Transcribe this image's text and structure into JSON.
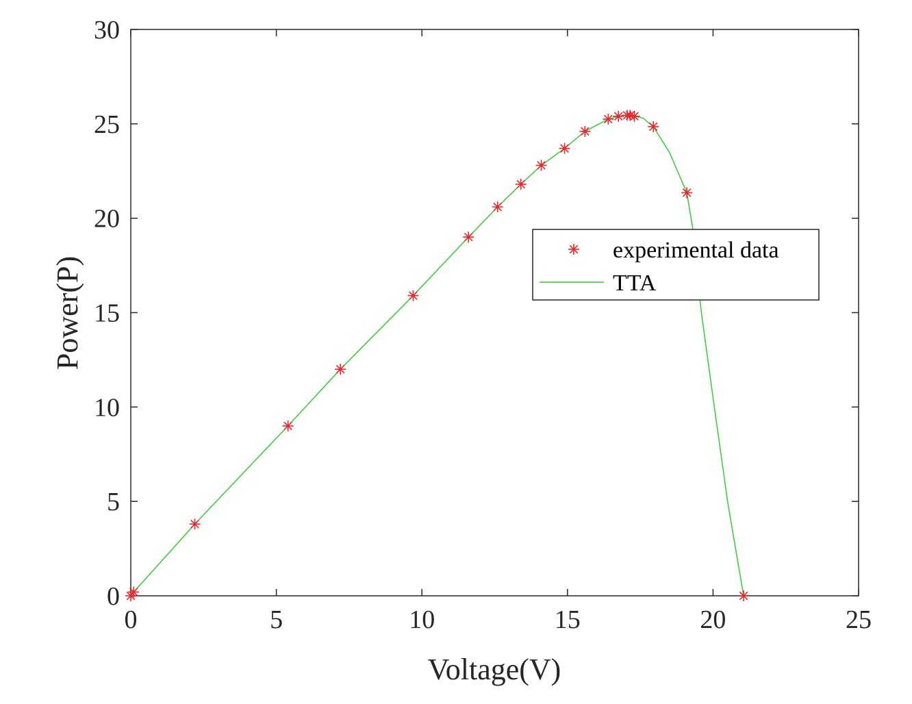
{
  "chart_data": {
    "type": "line",
    "title": "",
    "xlabel": "Voltage(V)",
    "ylabel": "Power(P)",
    "xlim": [
      0,
      25
    ],
    "ylim": [
      0,
      30
    ],
    "xticks": [
      0,
      5,
      10,
      15,
      20,
      25
    ],
    "yticks": [
      0,
      5,
      10,
      15,
      20,
      25,
      30
    ],
    "grid": false,
    "legend_position": "center-right",
    "series": [
      {
        "name": "experimental data",
        "kind": "markers",
        "marker": "asterisk",
        "color": "#e8262b",
        "x": [
          0.0,
          0.1,
          2.2,
          5.4,
          7.2,
          9.7,
          11.6,
          12.6,
          13.4,
          14.1,
          14.9,
          15.6,
          16.4,
          16.75,
          17.05,
          17.15,
          17.3,
          17.95,
          19.1,
          21.05
        ],
        "y": [
          0.0,
          0.2,
          3.8,
          9.0,
          12.0,
          15.9,
          19.0,
          20.6,
          21.8,
          22.8,
          23.7,
          24.6,
          25.25,
          25.4,
          25.45,
          25.45,
          25.4,
          24.85,
          21.35,
          0.0
        ]
      },
      {
        "name": "TTA",
        "kind": "line",
        "color": "#33cc33",
        "x": [
          0.0,
          0.1,
          2.2,
          5.4,
          7.2,
          9.7,
          11.6,
          12.6,
          13.4,
          14.1,
          14.9,
          15.6,
          16.4,
          16.75,
          17.05,
          17.15,
          17.3,
          17.6,
          17.95,
          18.5,
          19.1,
          19.3,
          19.6,
          20.0,
          20.5,
          21.05
        ],
        "y": [
          0.0,
          0.2,
          3.8,
          9.0,
          12.0,
          15.9,
          19.0,
          20.6,
          21.8,
          22.8,
          23.7,
          24.6,
          25.25,
          25.4,
          25.45,
          25.45,
          25.4,
          25.3,
          24.85,
          23.5,
          21.35,
          19.5,
          15.0,
          10.5,
          5.0,
          0.0
        ]
      }
    ]
  }
}
